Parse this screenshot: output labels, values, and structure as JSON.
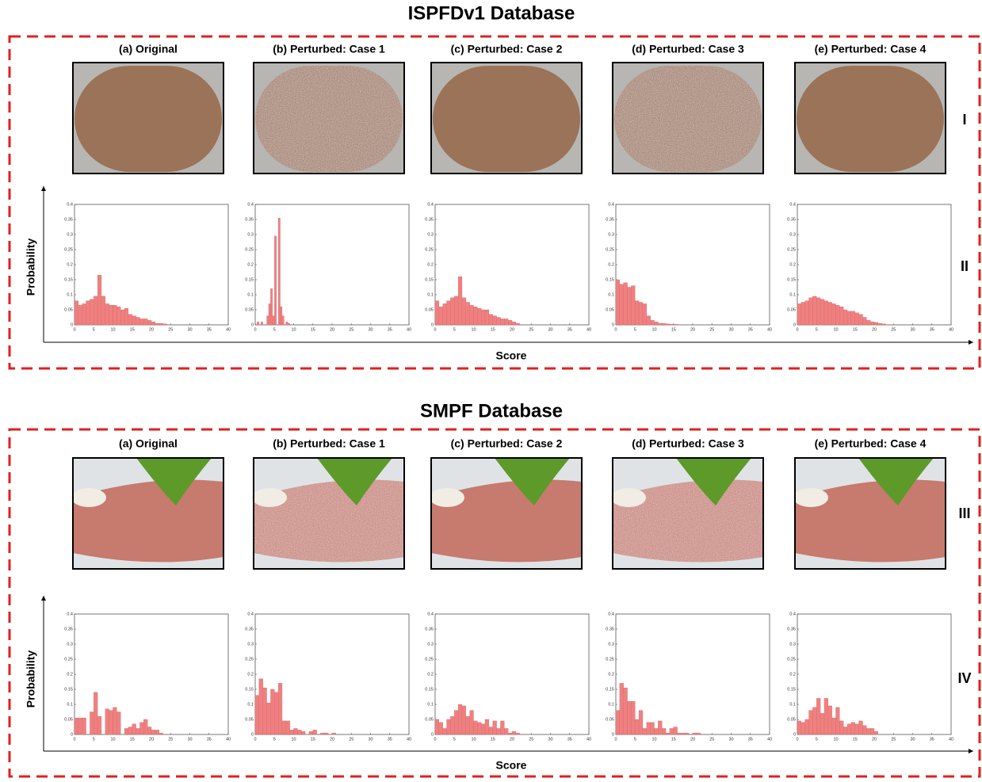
{
  "sections": [
    {
      "title": "ISPFDv1 Database",
      "panels": [
        "(a) Original",
        "(b) Perturbed: Case 1",
        "(c) Perturbed: Case 2",
        "(d) Perturbed: Case 3",
        "(e) Perturbed: Case 4"
      ],
      "row_labels": [
        "I",
        "II"
      ],
      "y_label": "Probability",
      "x_label": "Score"
    },
    {
      "title": "SMPF Database",
      "panels": [
        "(a) Original",
        "(b) Perturbed: Case 1",
        "(c) Perturbed: Case 2",
        "(d) Perturbed: Case 3",
        "(e) Perturbed: Case 4"
      ],
      "row_labels": [
        "III",
        "IV"
      ],
      "y_label": "Probability",
      "x_label": "Score"
    }
  ],
  "chart_data": [
    {
      "type": "histogram",
      "color": "#f08080",
      "xlim": [
        0,
        40
      ],
      "ylim": [
        0,
        0.4
      ],
      "xticks": [
        0,
        5,
        10,
        15,
        20,
        25,
        30,
        35,
        40
      ],
      "yticks": [
        0,
        0.05,
        0.1,
        0.15,
        0.2,
        0.25,
        0.3,
        0.35,
        0.4
      ],
      "bins": [
        0,
        1,
        2,
        3,
        4,
        5,
        6,
        7,
        8,
        9,
        10,
        11,
        12,
        13,
        14,
        15,
        16,
        17,
        18,
        19,
        20,
        21,
        22,
        23,
        24
      ],
      "values": [
        0.08,
        0.065,
        0.07,
        0.08,
        0.085,
        0.095,
        0.165,
        0.095,
        0.07,
        0.065,
        0.065,
        0.06,
        0.05,
        0.055,
        0.035,
        0.03,
        0.025,
        0.02,
        0.02,
        0.015,
        0.01,
        0.005,
        0.005,
        0.003
      ]
    },
    {
      "type": "histogram",
      "color": "#f08080",
      "xlim": [
        0,
        40
      ],
      "ylim": [
        0,
        0.4
      ],
      "xticks": [
        0,
        5,
        10,
        15,
        20,
        25,
        30,
        35,
        40
      ],
      "yticks": [
        0,
        0.05,
        0.1,
        0.15,
        0.2,
        0.25,
        0.3,
        0.35,
        0.4
      ],
      "bins": [
        0,
        0.5,
        1,
        1.5,
        2,
        2.5,
        3,
        3.5,
        4,
        4.5,
        5,
        5.5,
        6,
        6.5,
        7,
        7.5,
        8,
        8.5,
        9,
        9.5,
        10
      ],
      "values": [
        0,
        0.01,
        0,
        0.01,
        0,
        0,
        0.03,
        0.07,
        0.12,
        0.03,
        0.295,
        0,
        0.355,
        0.06,
        0.03,
        0,
        0.01,
        0.005,
        0,
        0
      ]
    },
    {
      "type": "histogram",
      "color": "#f08080",
      "xlim": [
        0,
        40
      ],
      "ylim": [
        0,
        0.4
      ],
      "xticks": [
        0,
        5,
        10,
        15,
        20,
        25,
        30,
        35,
        40
      ],
      "yticks": [
        0,
        0.05,
        0.1,
        0.15,
        0.2,
        0.25,
        0.3,
        0.35,
        0.4
      ],
      "bins": [
        0,
        1,
        2,
        3,
        4,
        5,
        6,
        7,
        8,
        9,
        10,
        11,
        12,
        13,
        14,
        15,
        16,
        17,
        18,
        19,
        20,
        21,
        22
      ],
      "values": [
        0.08,
        0.06,
        0.07,
        0.08,
        0.09,
        0.095,
        0.16,
        0.09,
        0.075,
        0.065,
        0.06,
        0.055,
        0.05,
        0.05,
        0.035,
        0.03,
        0.025,
        0.02,
        0.02,
        0.015,
        0.01,
        0.005
      ]
    },
    {
      "type": "histogram",
      "color": "#f08080",
      "xlim": [
        0,
        40
      ],
      "ylim": [
        0,
        0.4
      ],
      "xticks": [
        0,
        5,
        10,
        15,
        20,
        25,
        30,
        35,
        40
      ],
      "yticks": [
        0,
        0.05,
        0.1,
        0.15,
        0.2,
        0.25,
        0.3,
        0.35,
        0.4
      ],
      "bins": [
        0,
        1,
        2,
        3,
        4,
        5,
        6,
        7,
        8,
        9,
        10,
        11,
        12,
        13,
        14,
        15,
        16
      ],
      "values": [
        0.15,
        0.135,
        0.14,
        0.125,
        0.13,
        0.08,
        0.075,
        0.07,
        0.03,
        0.015,
        0.01,
        0.005,
        0.005,
        0.003,
        0.002,
        0.002
      ]
    },
    {
      "type": "histogram",
      "color": "#f08080",
      "xlim": [
        0,
        40
      ],
      "ylim": [
        0,
        0.4
      ],
      "xticks": [
        0,
        5,
        10,
        15,
        20,
        25,
        30,
        35,
        40
      ],
      "yticks": [
        0,
        0.05,
        0.1,
        0.15,
        0.2,
        0.25,
        0.3,
        0.35,
        0.4
      ],
      "bins": [
        0,
        1,
        2,
        3,
        4,
        5,
        6,
        7,
        8,
        9,
        10,
        11,
        12,
        13,
        14,
        15,
        16,
        17,
        18,
        19,
        20,
        21,
        22,
        23
      ],
      "values": [
        0.07,
        0.075,
        0.08,
        0.09,
        0.095,
        0.09,
        0.085,
        0.08,
        0.075,
        0.07,
        0.065,
        0.06,
        0.05,
        0.045,
        0.045,
        0.04,
        0.035,
        0.025,
        0.015,
        0.01,
        0.008,
        0.005,
        0.003
      ]
    },
    {
      "type": "histogram",
      "color": "#f08080",
      "xlim": [
        0,
        40
      ],
      "ylim": [
        0,
        0.4
      ],
      "xticks": [
        0,
        5,
        10,
        15,
        20,
        25,
        30,
        35,
        40
      ],
      "yticks": [
        0,
        0.05,
        0.1,
        0.15,
        0.2,
        0.25,
        0.3,
        0.35,
        0.4
      ],
      "bins": [
        0,
        1,
        2,
        3,
        4,
        5,
        6,
        7,
        8,
        9,
        10,
        11,
        12,
        13,
        14,
        15,
        16,
        17,
        18,
        19,
        20,
        21,
        22,
        23,
        24
      ],
      "values": [
        0.055,
        0.055,
        0.055,
        0,
        0.075,
        0.14,
        0.06,
        0,
        0.085,
        0.08,
        0.09,
        0.075,
        0,
        0.02,
        0.025,
        0.035,
        0.02,
        0.04,
        0.05,
        0.025,
        0.015,
        0.015,
        0.005,
        0
      ]
    },
    {
      "type": "histogram",
      "color": "#f08080",
      "xlim": [
        0,
        40
      ],
      "ylim": [
        0,
        0.4
      ],
      "xticks": [
        0,
        5,
        10,
        15,
        20,
        25,
        30,
        35,
        40
      ],
      "yticks": [
        0,
        0.05,
        0.1,
        0.15,
        0.2,
        0.25,
        0.3,
        0.35,
        0.4
      ],
      "bins": [
        0,
        1,
        2,
        3,
        4,
        5,
        6,
        7,
        8,
        9,
        10,
        11,
        12,
        13,
        14,
        15,
        16,
        17,
        18,
        19,
        20,
        21
      ],
      "values": [
        0.13,
        0.185,
        0.155,
        0.105,
        0.15,
        0.14,
        0.17,
        0.045,
        0.045,
        0.015,
        0.02,
        0.015,
        0.01,
        0,
        0.01,
        0.015,
        0,
        0.005,
        0.005,
        0,
        0.005
      ]
    },
    {
      "type": "histogram",
      "color": "#f08080",
      "xlim": [
        0,
        40
      ],
      "ylim": [
        0,
        0.4
      ],
      "xticks": [
        0,
        5,
        10,
        15,
        20,
        25,
        30,
        35,
        40
      ],
      "yticks": [
        0,
        0.05,
        0.1,
        0.15,
        0.2,
        0.25,
        0.3,
        0.35,
        0.4
      ],
      "bins": [
        0,
        1,
        2,
        3,
        4,
        5,
        6,
        7,
        8,
        9,
        10,
        11,
        12,
        13,
        14,
        15,
        16,
        17,
        18,
        19,
        20,
        21,
        22
      ],
      "values": [
        0.05,
        0.04,
        0.02,
        0.05,
        0.06,
        0.08,
        0.1,
        0.095,
        0.06,
        0.08,
        0.045,
        0.04,
        0.035,
        0.05,
        0.025,
        0.045,
        0.02,
        0.045,
        0.02,
        0.005,
        0.01,
        0.005
      ]
    },
    {
      "type": "histogram",
      "color": "#f08080",
      "xlim": [
        0,
        40
      ],
      "ylim": [
        0,
        0.4
      ],
      "xticks": [
        0,
        5,
        10,
        15,
        20,
        25,
        30,
        35,
        40
      ],
      "yticks": [
        0,
        0.05,
        0.1,
        0.15,
        0.2,
        0.25,
        0.3,
        0.35,
        0.4
      ],
      "bins": [
        0,
        1,
        2,
        3,
        4,
        5,
        6,
        7,
        8,
        9,
        10,
        11,
        12,
        13,
        14,
        15,
        16,
        17,
        18,
        19,
        20,
        21,
        22
      ],
      "values": [
        0.08,
        0.17,
        0.155,
        0.11,
        0.11,
        0.05,
        0.08,
        0.02,
        0.04,
        0.04,
        0.02,
        0.045,
        0.02,
        0.005,
        0.02,
        0.025,
        0.005,
        0.005,
        0.005,
        0,
        0.005,
        0.005
      ]
    },
    {
      "type": "histogram",
      "color": "#f08080",
      "xlim": [
        0,
        40
      ],
      "ylim": [
        0,
        0.4
      ],
      "xticks": [
        0,
        5,
        10,
        15,
        20,
        25,
        30,
        35,
        40
      ],
      "yticks": [
        0,
        0.05,
        0.1,
        0.15,
        0.2,
        0.25,
        0.3,
        0.35,
        0.4
      ],
      "bins": [
        0,
        1,
        2,
        3,
        4,
        5,
        6,
        7,
        8,
        9,
        10,
        11,
        12,
        13,
        14,
        15,
        16,
        17,
        18,
        19,
        20,
        21
      ],
      "values": [
        0.045,
        0.04,
        0.05,
        0.08,
        0.09,
        0.12,
        0.07,
        0.12,
        0.095,
        0.055,
        0.09,
        0.045,
        0.025,
        0.035,
        0.04,
        0.035,
        0.045,
        0.03,
        0.02,
        0.02,
        0.01
      ]
    }
  ]
}
